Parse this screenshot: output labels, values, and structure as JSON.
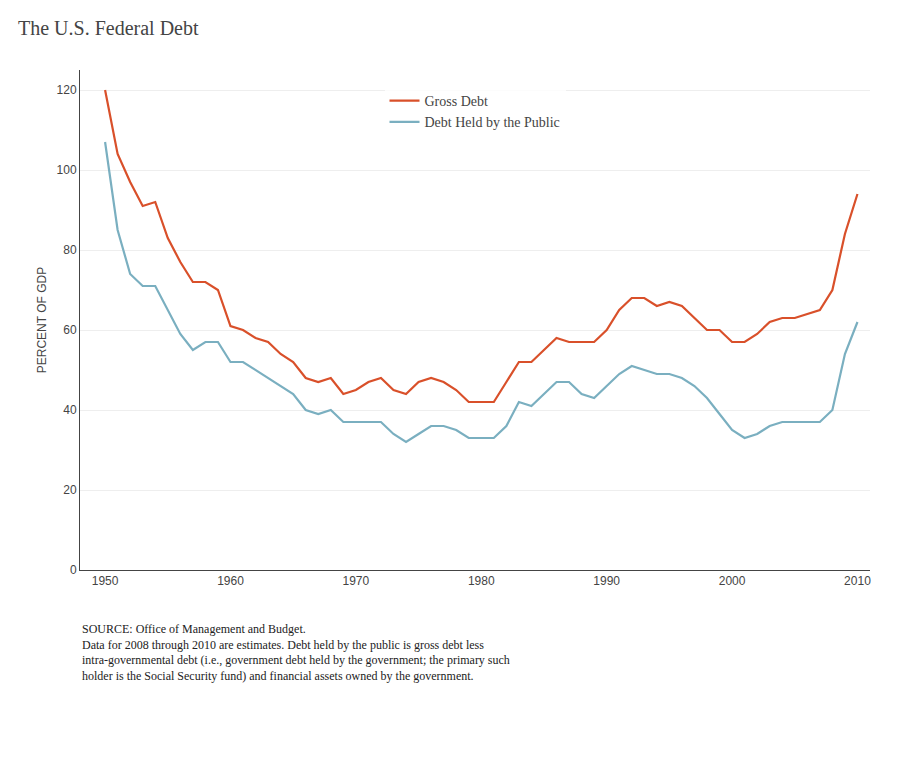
{
  "chart_data": {
    "type": "line",
    "title": "The U.S. Federal Debt",
    "ylabel": "PERCENT OF GDP",
    "annotations": [
      "SOURCE: Office of Management and Budget.\nData for 2008 through 2010 are estimates. Debt held by the public is gross debt less\nintra-governmental debt (i.e., government debt held by the government; the primary such\nholder is the Social Security fund) and financial assets owned by the government."
    ],
    "x": [
      1950,
      1951,
      1952,
      1953,
      1954,
      1955,
      1956,
      1957,
      1958,
      1959,
      1960,
      1961,
      1962,
      1963,
      1964,
      1965,
      1966,
      1967,
      1968,
      1969,
      1970,
      1971,
      1972,
      1973,
      1974,
      1975,
      1976,
      1977,
      1978,
      1979,
      1980,
      1981,
      1982,
      1983,
      1984,
      1985,
      1986,
      1987,
      1988,
      1989,
      1990,
      1991,
      1992,
      1993,
      1994,
      1995,
      1996,
      1997,
      1998,
      1999,
      2000,
      2001,
      2002,
      2003,
      2004,
      2005,
      2006,
      2007,
      2008,
      2009,
      2010
    ],
    "series": [
      {
        "name": "Gross Debt",
        "color": "#d9502a",
        "values": [
          120,
          104,
          97,
          91,
          92,
          83,
          77,
          72,
          72,
          70,
          61,
          60,
          58,
          57,
          54,
          52,
          48,
          47,
          48,
          44,
          45,
          47,
          48,
          45,
          44,
          47,
          48,
          47,
          45,
          42,
          42,
          42,
          47,
          52,
          52,
          55,
          58,
          57,
          57,
          57,
          60,
          65,
          68,
          68,
          66,
          67,
          66,
          63,
          60,
          60,
          57,
          57,
          59,
          62,
          63,
          63,
          64,
          65,
          70,
          84,
          94
        ]
      },
      {
        "name": "Debt Held by the Public",
        "color": "#7aafc0",
        "values": [
          107,
          85,
          74,
          71,
          71,
          65,
          59,
          55,
          57,
          57,
          52,
          52,
          50,
          48,
          46,
          44,
          40,
          39,
          40,
          37,
          37,
          37,
          37,
          34,
          32,
          34,
          36,
          36,
          35,
          33,
          33,
          33,
          36,
          42,
          41,
          44,
          47,
          47,
          44,
          43,
          46,
          49,
          51,
          50,
          49,
          49,
          48,
          46,
          43,
          39,
          35,
          33,
          34,
          36,
          37,
          37,
          37,
          37,
          40,
          54,
          62
        ]
      }
    ],
    "xlim": [
      1948,
      2011
    ],
    "ylim": [
      0,
      125
    ],
    "xticks": [
      1950,
      1960,
      1970,
      1980,
      1990,
      2000,
      2010
    ],
    "yticks": [
      0,
      20,
      40,
      60,
      80,
      100,
      120
    ],
    "grid": true,
    "legend": "top"
  }
}
